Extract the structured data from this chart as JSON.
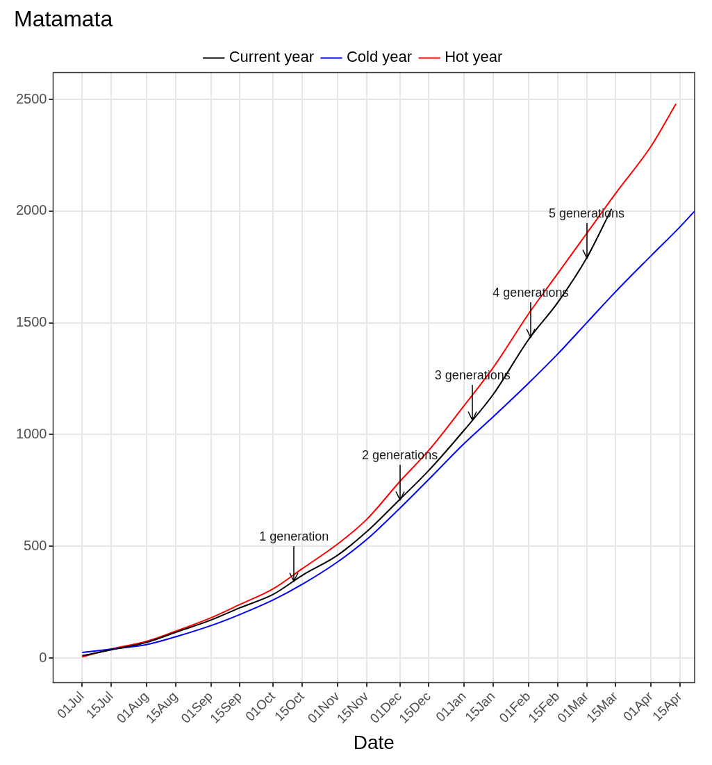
{
  "chart_data": {
    "type": "line",
    "title": "Matamata",
    "xlabel": "Date",
    "xlim": [
      "2000-06-17",
      "2001-04-22"
    ],
    "xticks": [
      {
        "value": "2000-07-01",
        "label": "01Jul"
      },
      {
        "value": "2000-07-15",
        "label": "15Jul"
      },
      {
        "value": "2000-08-01",
        "label": "01Aug"
      },
      {
        "value": "2000-08-15",
        "label": "15Aug"
      },
      {
        "value": "2000-09-01",
        "label": "01Sep"
      },
      {
        "value": "2000-09-15",
        "label": "15Sep"
      },
      {
        "value": "2000-10-01",
        "label": "01Oct"
      },
      {
        "value": "2000-10-15",
        "label": "15Oct"
      },
      {
        "value": "2000-11-01",
        "label": "01Nov"
      },
      {
        "value": "2000-11-15",
        "label": "15Nov"
      },
      {
        "value": "2000-12-01",
        "label": "01Dec"
      },
      {
        "value": "2000-12-15",
        "label": "15Dec"
      },
      {
        "value": "2001-01-01",
        "label": "01Jan"
      },
      {
        "value": "2001-01-15",
        "label": "15Jan"
      },
      {
        "value": "2001-02-01",
        "label": "01Feb"
      },
      {
        "value": "2001-02-15",
        "label": "15Feb"
      },
      {
        "value": "2001-03-01",
        "label": "01Mar"
      },
      {
        "value": "2001-03-15",
        "label": "15Mar"
      },
      {
        "value": "2001-04-01",
        "label": "01Apr"
      },
      {
        "value": "2001-04-15",
        "label": "15Apr"
      }
    ],
    "ylim": [
      -110,
      2620
    ],
    "yticks": [
      0,
      500,
      1000,
      1500,
      2000,
      2500
    ],
    "grid": true,
    "legend": "top",
    "marker": "none",
    "line_style": "solid",
    "series": [
      {
        "name": "Current year",
        "color": "#000000",
        "x": [
          "2000-07-01",
          "2000-07-15",
          "2000-08-01",
          "2000-08-15",
          "2000-09-01",
          "2000-09-15",
          "2000-10-01",
          "2000-10-15",
          "2000-11-01",
          "2000-11-15",
          "2000-12-01",
          "2000-12-15",
          "2001-01-01",
          "2001-01-15",
          "2001-02-01",
          "2001-02-15",
          "2001-03-01",
          "2001-03-13"
        ],
        "values": [
          10,
          37,
          70,
          115,
          170,
          225,
          285,
          370,
          460,
          565,
          710,
          840,
          1020,
          1180,
          1425,
          1590,
          1790,
          2010
        ]
      },
      {
        "name": "Cold year",
        "color": "#0000ff",
        "x": [
          "2000-07-01",
          "2000-07-15",
          "2000-08-01",
          "2000-08-15",
          "2000-09-01",
          "2000-09-15",
          "2000-10-01",
          "2000-10-15",
          "2000-11-01",
          "2000-11-15",
          "2000-12-01",
          "2000-12-15",
          "2001-01-01",
          "2001-01-15",
          "2001-02-01",
          "2001-02-15",
          "2001-03-01",
          "2001-03-15",
          "2001-04-01",
          "2001-04-15",
          "2001-04-22"
        ],
        "values": [
          25,
          40,
          60,
          95,
          145,
          195,
          260,
          330,
          430,
          530,
          670,
          800,
          960,
          1080,
          1230,
          1360,
          1500,
          1640,
          1800,
          1930,
          2000
        ]
      },
      {
        "name": "Hot year",
        "color": "#ff0000",
        "x": [
          "2000-07-01",
          "2000-07-15",
          "2000-08-01",
          "2000-08-15",
          "2000-09-01",
          "2000-09-15",
          "2000-10-01",
          "2000-10-15",
          "2000-11-01",
          "2000-11-15",
          "2000-12-01",
          "2000-12-15",
          "2001-01-01",
          "2001-01-15",
          "2001-02-01",
          "2001-02-15",
          "2001-03-01",
          "2001-03-15",
          "2001-04-01",
          "2001-04-13"
        ],
        "values": [
          5,
          40,
          75,
          120,
          180,
          240,
          310,
          400,
          510,
          620,
          790,
          930,
          1130,
          1300,
          1540,
          1720,
          1900,
          2080,
          2290,
          2480
        ]
      }
    ],
    "annotations": [
      {
        "text": "1 generation",
        "x": "2000-10-11",
        "y": 346
      },
      {
        "text": "2 generations",
        "x": "2000-12-01",
        "y": 710
      },
      {
        "text": "3 generations",
        "x": "2001-01-05",
        "y": 1066
      },
      {
        "text": "4 generations",
        "x": "2001-02-02",
        "y": 1437
      },
      {
        "text": "5 generations",
        "x": "2001-03-01",
        "y": 1790
      }
    ]
  }
}
